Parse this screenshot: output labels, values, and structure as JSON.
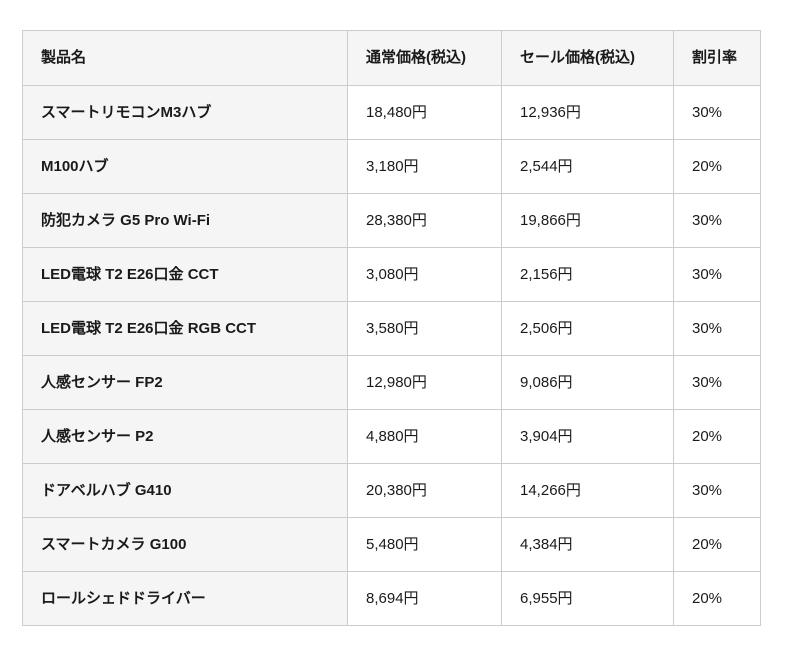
{
  "table": {
    "columns": [
      "製品名",
      "通常価格(税込)",
      "セール価格(税込)",
      "割引率"
    ],
    "rows": [
      {
        "product": "スマートリモコンM3ハブ",
        "regular_price": "18,480円",
        "sale_price": "12,936円",
        "discount": "30%"
      },
      {
        "product": "M100ハブ",
        "regular_price": "3,180円",
        "sale_price": "2,544円",
        "discount": "20%"
      },
      {
        "product": "防犯カメラ G5 Pro Wi-Fi",
        "regular_price": "28,380円",
        "sale_price": "19,866円",
        "discount": "30%"
      },
      {
        "product": "LED電球 T2 E26口金 CCT",
        "regular_price": "3,080円",
        "sale_price": "2,156円",
        "discount": "30%"
      },
      {
        "product": "LED電球 T2 E26口金 RGB CCT",
        "regular_price": "3,580円",
        "sale_price": "2,506円",
        "discount": "30%"
      },
      {
        "product": "人感センサー FP2",
        "regular_price": "12,980円",
        "sale_price": "9,086円",
        "discount": "30%"
      },
      {
        "product": "人感センサー P2",
        "regular_price": "4,880円",
        "sale_price": "3,904円",
        "discount": "20%"
      },
      {
        "product": "ドアベルハブ G410",
        "regular_price": "20,380円",
        "sale_price": "14,266円",
        "discount": "30%"
      },
      {
        "product": "スマートカメラ G100",
        "regular_price": "5,480円",
        "sale_price": "4,384円",
        "discount": "20%"
      },
      {
        "product": "ロールシェドドライバー",
        "regular_price": "8,694円",
        "sale_price": "6,955円",
        "discount": "20%"
      }
    ]
  },
  "colors": {
    "header_background": "#f5f5f5",
    "row_label_background": "#f5f5f5",
    "cell_background": "#ffffff",
    "border": "#cccccc",
    "text": "#1a1a1a",
    "page_background": "#ffffff"
  }
}
